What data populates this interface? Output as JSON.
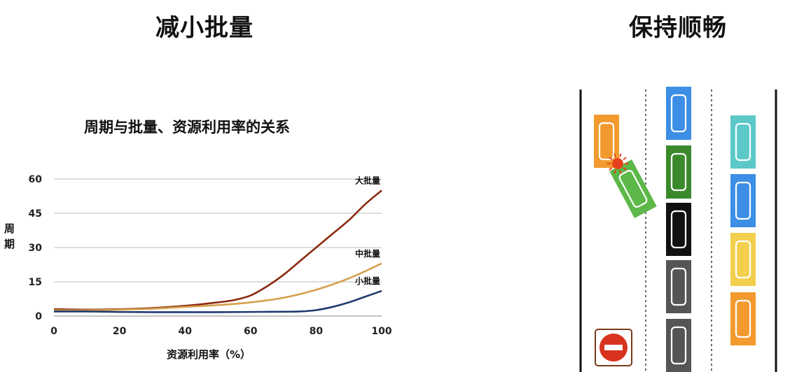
{
  "headings": {
    "left": "减小批量",
    "right": "保持顺畅"
  },
  "chart_data": {
    "type": "line",
    "title": "周期与批量、资源利用率的关系",
    "xlabel": "资源利用率（%）",
    "ylabel": "周期",
    "xlim": [
      0,
      100
    ],
    "ylim": [
      0,
      60
    ],
    "xticks": [
      "0",
      "20",
      "40",
      "60",
      "80",
      "100"
    ],
    "yticks": [
      "0",
      "15",
      "30",
      "45",
      "60"
    ],
    "grid": true,
    "series": [
      {
        "name": "大批量",
        "color": "#8b2a10",
        "x": [
          0,
          10,
          20,
          30,
          40,
          50,
          55,
          60,
          65,
          70,
          75,
          80,
          85,
          90,
          95,
          100
        ],
        "y": [
          3,
          2.8,
          3,
          3.5,
          4.5,
          6,
          7,
          9,
          13,
          18,
          24,
          30,
          36,
          42,
          49,
          55
        ]
      },
      {
        "name": "中批量",
        "color": "#d4a04c",
        "x": [
          0,
          10,
          20,
          30,
          40,
          50,
          60,
          70,
          80,
          90,
          100
        ],
        "y": [
          2.5,
          2.5,
          2.8,
          3.2,
          4,
          4.8,
          6,
          8,
          11.5,
          16.5,
          23
        ]
      },
      {
        "name": "小批量",
        "color": "#1e3a6e",
        "x": [
          0,
          10,
          20,
          30,
          40,
          50,
          60,
          70,
          75,
          80,
          85,
          90,
          95,
          100
        ],
        "y": [
          2,
          2,
          1.8,
          1.7,
          1.7,
          1.7,
          1.8,
          1.9,
          2,
          2.6,
          4,
          6,
          8.5,
          11
        ]
      }
    ]
  },
  "road_diagram": {
    "lane_left_cars": [
      "#f29a2e"
    ],
    "merging_car": "#5cb848",
    "middle_lane_cars": [
      "#3c8ee6",
      "#3a8a2c",
      "#111111",
      "#555555",
      "#555555"
    ],
    "right_lane_cars": [
      "#5cc8c8",
      "#3c8ee6",
      "#f2d04e",
      "#f29a2e"
    ],
    "collision_color": "#e8401c",
    "no_entry_sign_color": "#d8331f"
  }
}
